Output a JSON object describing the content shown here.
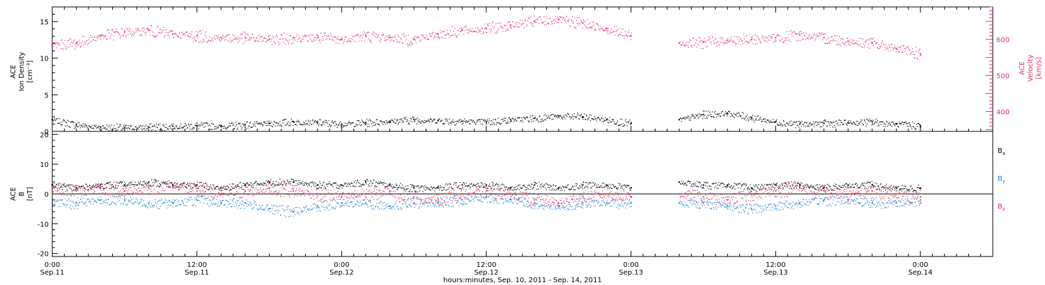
{
  "chart_data": [
    {
      "type": "scatter",
      "panel": "plasma",
      "ylabel_lines": [
        "ACE",
        "Ion Density",
        "[cm⁻³]"
      ],
      "ylim": [
        0,
        17
      ],
      "yticks": [
        0,
        5,
        10,
        15
      ],
      "y2label_lines": [
        "ACE",
        "Velocity",
        "[km/s]"
      ],
      "y2lim": [
        345,
        690
      ],
      "y2ticks": [
        400,
        500,
        600
      ],
      "xlim_hours": [
        0,
        78
      ],
      "series": [
        {
          "name": "Ion Density",
          "axis": "left",
          "color": "#000000",
          "x_hours": [
            0,
            2,
            4,
            6,
            8,
            10,
            12,
            14,
            16,
            18,
            20,
            22,
            24,
            26,
            28,
            30,
            32,
            34,
            36,
            38,
            40,
            42,
            44,
            46,
            48,
            52,
            54,
            56,
            58,
            60,
            62,
            64,
            66,
            68,
            70,
            72
          ],
          "values": [
            1.6,
            0.9,
            0.6,
            0.5,
            0.6,
            0.7,
            0.8,
            0.7,
            0.9,
            1.1,
            1.3,
            1.2,
            1.0,
            1.2,
            1.4,
            1.6,
            1.5,
            1.4,
            1.3,
            1.6,
            1.8,
            2.1,
            2.0,
            1.6,
            1.1,
            1.6,
            2.3,
            2.5,
            1.9,
            1.3,
            1.0,
            1.1,
            1.2,
            1.3,
            1.0,
            0.8
          ]
        },
        {
          "name": "Velocity",
          "axis": "right",
          "color": "#e8305e",
          "x_hours": [
            0,
            2,
            4,
            6,
            8,
            10,
            12,
            14,
            16,
            18,
            20,
            22,
            24,
            26,
            28,
            30,
            32,
            34,
            36,
            38,
            40,
            42,
            44,
            46,
            48,
            52,
            54,
            56,
            58,
            60,
            62,
            64,
            66,
            68,
            70,
            72
          ],
          "values": [
            585,
            590,
            610,
            620,
            625,
            615,
            610,
            605,
            605,
            600,
            605,
            605,
            600,
            610,
            605,
            600,
            615,
            625,
            630,
            640,
            650,
            655,
            645,
            630,
            610,
            590,
            592,
            598,
            600,
            605,
            612,
            605,
            595,
            590,
            575,
            560
          ]
        }
      ]
    },
    {
      "type": "scatter",
      "panel": "magnetic",
      "ylabel_lines": [
        "ACE",
        "B",
        "[nT]"
      ],
      "ylim": [
        -21,
        21
      ],
      "yticks": [
        -20,
        -10,
        0,
        10,
        20
      ],
      "xlim_hours": [
        0,
        78
      ],
      "series": [
        {
          "name": "Bx",
          "color": "#000000",
          "x_hours": [
            0,
            2,
            4,
            6,
            8,
            10,
            12,
            14,
            16,
            18,
            20,
            22,
            24,
            26,
            28,
            30,
            32,
            34,
            36,
            38,
            40,
            42,
            44,
            46,
            48,
            52,
            54,
            56,
            58,
            60,
            62,
            64,
            66,
            68,
            70,
            72
          ],
          "values": [
            3,
            2,
            3,
            3,
            4,
            3,
            3,
            2,
            3,
            4,
            4,
            3,
            3,
            4,
            3,
            2,
            2,
            3,
            3,
            2,
            3,
            2,
            3,
            3,
            2,
            4,
            3,
            3,
            2,
            3,
            3,
            2,
            3,
            3,
            2,
            2
          ]
        },
        {
          "name": "By",
          "color": "#1e7fd6",
          "x_hours": [
            0,
            2,
            4,
            6,
            8,
            10,
            12,
            14,
            16,
            18,
            20,
            22,
            24,
            26,
            28,
            30,
            32,
            34,
            36,
            38,
            40,
            42,
            44,
            46,
            48,
            52,
            54,
            56,
            58,
            60,
            62,
            64,
            66,
            68,
            70,
            72
          ],
          "values": [
            -3,
            -3,
            -2,
            -2,
            -3,
            -3,
            -2,
            -3,
            -3,
            -5,
            -6,
            -4,
            -3,
            -3,
            -4,
            -3,
            -3,
            -2,
            -1,
            -2,
            -3,
            -4,
            -3,
            -3,
            -3,
            -3,
            -3,
            -4,
            -5,
            -4,
            -3,
            -2,
            -2,
            -3,
            -3,
            -2
          ]
        },
        {
          "name": "Bz",
          "color": "#e8305e",
          "x_hours": [
            0,
            2,
            4,
            6,
            8,
            10,
            12,
            14,
            16,
            18,
            20,
            22,
            24,
            26,
            28,
            30,
            32,
            34,
            36,
            38,
            40,
            42,
            44,
            46,
            48,
            52,
            54,
            56,
            58,
            60,
            62,
            64,
            66,
            68,
            70,
            72
          ],
          "values": [
            2,
            1,
            2,
            1,
            2,
            3,
            1,
            0,
            1,
            2,
            1,
            0,
            -1,
            0,
            1,
            -1,
            -2,
            0,
            1,
            0,
            -2,
            -3,
            -1,
            0,
            -1,
            0,
            -1,
            -2,
            0,
            1,
            2,
            1,
            0,
            1,
            0,
            -1
          ]
        }
      ],
      "legend_placement": "right"
    }
  ],
  "x_axis": {
    "ticks": [
      {
        "hours": 0,
        "time": "0:00",
        "date": "Sep.11"
      },
      {
        "hours": 12,
        "time": "12:00",
        "date": "Sep.11"
      },
      {
        "hours": 24,
        "time": "0:00",
        "date": "Sep.12"
      },
      {
        "hours": 36,
        "time": "12:00",
        "date": "Sep.12"
      },
      {
        "hours": 48,
        "time": "0:00",
        "date": "Sep.13"
      },
      {
        "hours": 60,
        "time": "12:00",
        "date": "Sep.13"
      },
      {
        "hours": 72,
        "time": "0:00",
        "date": "Sep.14"
      }
    ],
    "minor_step_hours": 1,
    "label": "hours:minutes, Sep. 10, 2011 - Sep. 14, 2011",
    "data_gap_hours": [
      48,
      52
    ]
  },
  "legend": {
    "bx": {
      "base": "B",
      "sub": "x",
      "color": "#000000"
    },
    "by": {
      "base": "B",
      "sub": "y",
      "color": "#1e7fd6"
    },
    "bz": {
      "base": "B",
      "sub": "z",
      "color": "#e8305e"
    }
  },
  "colors": {
    "axis": "#000000",
    "velocity": "#e8305e",
    "by": "#1e7fd6"
  }
}
